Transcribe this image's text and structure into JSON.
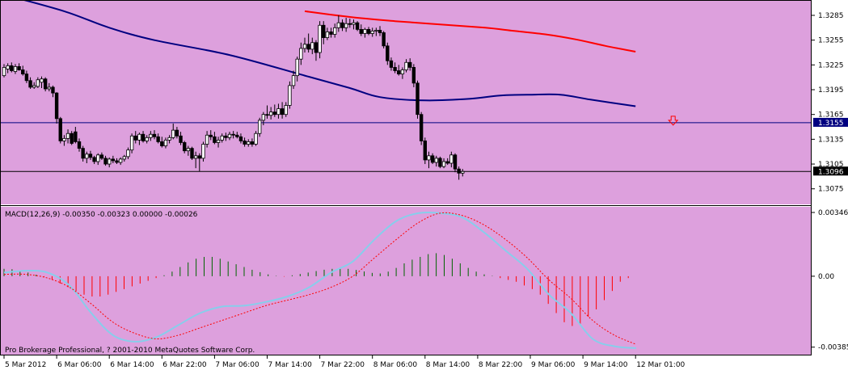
{
  "colors": {
    "background": "#DDA0DD",
    "bull_body": "#FFFFFF",
    "bear_body": "#000000",
    "candle_outline": "#000000",
    "ma_fast": "#000080",
    "ma_slow": "#FF0000",
    "hline": "#000080",
    "macd_signal": "#FF0000",
    "macd_main": "#87CEEB",
    "hist_pos": "#006400",
    "hist_neg": "#FF0000",
    "arrow": "#FF0000"
  },
  "price_axis": {
    "range": [
      1.3063,
      1.3285
    ],
    "ticks": [
      "1.3285",
      "1.3255",
      "1.3225",
      "1.3195",
      "1.3165",
      "1.3135",
      "1.3105",
      "1.3075"
    ],
    "hline_label": "1.3155",
    "hline_value": 1.3155,
    "last_label": "1.3096",
    "last_value": 1.3096
  },
  "macd_axis": {
    "label": "MACD(12,26,9) -0.00350 -0.00323 0.00000 -0.00026",
    "range": [
      -0.00395,
      0.00346
    ],
    "ticks": [
      "0.00346",
      "0.00",
      "-0.00385"
    ]
  },
  "copyright": "Pro Brokerage Professional, ? 2001-2010 MetaQuotes Software Corp.",
  "time_axis": {
    "labels": [
      "5 Mar 2012",
      "6 Mar 06:00",
      "6 Mar 14:00",
      "6 Mar 22:00",
      "7 Mar 06:00",
      "7 Mar 14:00",
      "7 Mar 22:00",
      "8 Mar 06:00",
      "8 Mar 14:00",
      "8 Mar 22:00",
      "9 Mar 06:00",
      "9 Mar 14:00",
      "12 Mar 01:00"
    ],
    "label_slots": [
      0,
      14,
      28,
      42,
      56,
      70,
      84,
      98,
      112,
      126,
      140,
      154,
      168
    ]
  },
  "arrow": {
    "slot": 178,
    "price": 1.3157
  },
  "chart_data": [
    {
      "type": "candlestick",
      "x_unit": "hourly bars",
      "ohlc": [
        [
          1.3212,
          1.3226,
          1.321,
          1.3222
        ],
        [
          1.322,
          1.3227,
          1.3215,
          1.3224
        ],
        [
          1.3224,
          1.3228,
          1.3216,
          1.3218
        ],
        [
          1.3217,
          1.3226,
          1.3214,
          1.3223
        ],
        [
          1.3223,
          1.3227,
          1.3218,
          1.3219
        ],
        [
          1.3219,
          1.3224,
          1.3212,
          1.3214
        ],
        [
          1.3214,
          1.3218,
          1.3203,
          1.3206
        ],
        [
          1.3206,
          1.321,
          1.3196,
          1.3198
        ],
        [
          1.3198,
          1.3204,
          1.3196,
          1.32
        ],
        [
          1.3199,
          1.321,
          1.3197,
          1.3207
        ],
        [
          1.3204,
          1.3211,
          1.3197,
          1.3208
        ],
        [
          1.3208,
          1.321,
          1.3193,
          1.3196
        ],
        [
          1.3196,
          1.3203,
          1.3193,
          1.3198
        ],
        [
          1.3198,
          1.32,
          1.3186,
          1.3191
        ],
        [
          1.3191,
          1.3192,
          1.3154,
          1.316
        ],
        [
          1.316,
          1.3162,
          1.313,
          1.3133
        ],
        [
          1.3133,
          1.314,
          1.3127,
          1.3136
        ],
        [
          1.3136,
          1.3147,
          1.313,
          1.3142
        ],
        [
          1.3142,
          1.3145,
          1.3128,
          1.313
        ],
        [
          1.3144,
          1.315,
          1.313,
          1.3132
        ],
        [
          1.3132,
          1.3136,
          1.312,
          1.3124
        ],
        [
          1.3124,
          1.3127,
          1.3108,
          1.3112
        ],
        [
          1.3112,
          1.312,
          1.3106,
          1.3117
        ],
        [
          1.3117,
          1.3121,
          1.311,
          1.3113
        ],
        [
          1.3113,
          1.3115,
          1.3105,
          1.3108
        ],
        [
          1.3108,
          1.3118,
          1.3104,
          1.3116
        ],
        [
          1.3116,
          1.3119,
          1.311,
          1.3112
        ],
        [
          1.3112,
          1.3115,
          1.3103,
          1.3105
        ],
        [
          1.3105,
          1.3113,
          1.3101,
          1.3111
        ],
        [
          1.3111,
          1.3115,
          1.3106,
          1.3109
        ],
        [
          1.3109,
          1.3112,
          1.3105,
          1.3107
        ],
        [
          1.3107,
          1.3113,
          1.3104,
          1.3111
        ],
        [
          1.3111,
          1.3116,
          1.3108,
          1.3114
        ],
        [
          1.3114,
          1.3125,
          1.3111,
          1.3122
        ],
        [
          1.3122,
          1.3142,
          1.3118,
          1.3139
        ],
        [
          1.3139,
          1.3145,
          1.313,
          1.3134
        ],
        [
          1.3134,
          1.3143,
          1.3128,
          1.3141
        ],
        [
          1.3141,
          1.3145,
          1.3131,
          1.3133
        ],
        [
          1.3133,
          1.314,
          1.313,
          1.3137
        ],
        [
          1.3137,
          1.3145,
          1.3133,
          1.3141
        ],
        [
          1.3141,
          1.3146,
          1.3135,
          1.3138
        ],
        [
          1.3138,
          1.3142,
          1.313,
          1.3132
        ],
        [
          1.3132,
          1.3138,
          1.3125,
          1.3127
        ],
        [
          1.3127,
          1.3137,
          1.3124,
          1.3134
        ],
        [
          1.3134,
          1.314,
          1.313,
          1.3137
        ],
        [
          1.3137,
          1.3154,
          1.3135,
          1.3146
        ],
        [
          1.3146,
          1.315,
          1.3136,
          1.3139
        ],
        [
          1.3139,
          1.3144,
          1.3128,
          1.3131
        ],
        [
          1.3131,
          1.3133,
          1.3118,
          1.3121
        ],
        [
          1.3121,
          1.3127,
          1.3115,
          1.3124
        ],
        [
          1.3124,
          1.3126,
          1.311,
          1.3112
        ],
        [
          1.3112,
          1.312,
          1.31,
          1.3115
        ],
        [
          1.3115,
          1.3118,
          1.3096,
          1.3112
        ],
        [
          1.3112,
          1.3132,
          1.3108,
          1.3129
        ],
        [
          1.3129,
          1.3145,
          1.3125,
          1.314
        ],
        [
          1.314,
          1.3146,
          1.3134,
          1.3138
        ],
        [
          1.3138,
          1.3144,
          1.3129,
          1.3131
        ],
        [
          1.3131,
          1.3138,
          1.3125,
          1.3134
        ],
        [
          1.3134,
          1.3142,
          1.3131,
          1.3139
        ],
        [
          1.3139,
          1.3143,
          1.3133,
          1.3137
        ],
        [
          1.3137,
          1.3144,
          1.3134,
          1.3141
        ],
        [
          1.3141,
          1.3145,
          1.3136,
          1.314
        ],
        [
          1.314,
          1.3144,
          1.3136,
          1.3138
        ],
        [
          1.3138,
          1.3142,
          1.313,
          1.3133
        ],
        [
          1.3133,
          1.3137,
          1.3126,
          1.3129
        ],
        [
          1.3129,
          1.3135,
          1.3126,
          1.3132
        ],
        [
          1.3132,
          1.3136,
          1.3126,
          1.3129
        ],
        [
          1.3129,
          1.3145,
          1.3127,
          1.3142
        ],
        [
          1.3142,
          1.3161,
          1.3138,
          1.3158
        ],
        [
          1.3158,
          1.3168,
          1.3152,
          1.3165
        ],
        [
          1.3165,
          1.3176,
          1.316,
          1.3164
        ],
        [
          1.3164,
          1.3174,
          1.3159,
          1.3168
        ],
        [
          1.3168,
          1.3177,
          1.3162,
          1.3165
        ],
        [
          1.3165,
          1.3178,
          1.316,
          1.3172
        ],
        [
          1.3172,
          1.318,
          1.316,
          1.3165
        ],
        [
          1.3165,
          1.318,
          1.3162,
          1.3176
        ],
        [
          1.3176,
          1.3205,
          1.3172,
          1.32
        ],
        [
          1.32,
          1.3218,
          1.3196,
          1.3212
        ],
        [
          1.3212,
          1.3235,
          1.3205,
          1.3232
        ],
        [
          1.3232,
          1.3252,
          1.3225,
          1.3245
        ],
        [
          1.3245,
          1.3258,
          1.324,
          1.325
        ],
        [
          1.325,
          1.3263,
          1.324,
          1.3244
        ],
        [
          1.3244,
          1.3258,
          1.3238,
          1.3252
        ],
        [
          1.3252,
          1.3255,
          1.323,
          1.324
        ],
        [
          1.324,
          1.3278,
          1.3233,
          1.3273
        ],
        [
          1.3273,
          1.3278,
          1.325,
          1.3258
        ],
        [
          1.3258,
          1.327,
          1.3255,
          1.3265
        ],
        [
          1.3265,
          1.327,
          1.3258,
          1.3262
        ],
        [
          1.3262,
          1.3275,
          1.3258,
          1.327
        ],
        [
          1.327,
          1.3285,
          1.3265,
          1.3276
        ],
        [
          1.3276,
          1.328,
          1.3266,
          1.327
        ],
        [
          1.327,
          1.3282,
          1.3265,
          1.3275
        ],
        [
          1.3275,
          1.3281,
          1.327,
          1.3274
        ],
        [
          1.3274,
          1.328,
          1.3268,
          1.3276
        ],
        [
          1.3276,
          1.3278,
          1.3266,
          1.3268
        ],
        [
          1.3268,
          1.3274,
          1.326,
          1.3263
        ],
        [
          1.3263,
          1.327,
          1.3258,
          1.3268
        ],
        [
          1.3268,
          1.3271,
          1.3261,
          1.3263
        ],
        [
          1.3263,
          1.327,
          1.3259,
          1.3266
        ],
        [
          1.3266,
          1.327,
          1.326,
          1.3267
        ],
        [
          1.3267,
          1.3272,
          1.326,
          1.3264
        ],
        [
          1.3264,
          1.3266,
          1.3245,
          1.3248
        ],
        [
          1.3248,
          1.3252,
          1.3225,
          1.323
        ],
        [
          1.323,
          1.3234,
          1.3218,
          1.3222
        ],
        [
          1.3222,
          1.3228,
          1.3215,
          1.3218
        ],
        [
          1.3218,
          1.3225,
          1.3212,
          1.3214
        ],
        [
          1.3214,
          1.3222,
          1.3208,
          1.3219
        ],
        [
          1.3219,
          1.3232,
          1.3216,
          1.3228
        ],
        [
          1.3228,
          1.3233,
          1.3218,
          1.3222
        ],
        [
          1.3222,
          1.3226,
          1.3198,
          1.3203
        ],
        [
          1.3203,
          1.3206,
          1.316,
          1.3165
        ],
        [
          1.3165,
          1.3168,
          1.3128,
          1.3133
        ],
        [
          1.3133,
          1.3137,
          1.3105,
          1.311
        ],
        [
          1.311,
          1.312,
          1.31,
          1.3115
        ],
        [
          1.3115,
          1.3118,
          1.3105,
          1.3107
        ],
        [
          1.3107,
          1.3115,
          1.3102,
          1.3112
        ],
        [
          1.3112,
          1.3114,
          1.31,
          1.3102
        ],
        [
          1.3102,
          1.3112,
          1.31,
          1.3108
        ],
        [
          1.3108,
          1.3112,
          1.3104,
          1.3106
        ],
        [
          1.3106,
          1.312,
          1.3101,
          1.3116
        ],
        [
          1.3116,
          1.3118,
          1.3095,
          1.3099
        ],
        [
          1.3099,
          1.3102,
          1.3086,
          1.3094
        ],
        [
          1.3094,
          1.3099,
          1.309,
          1.3096
        ]
      ]
    },
    {
      "type": "line",
      "name": "fast moving average",
      "x": [
        0,
        16,
        28,
        40,
        60,
        80,
        92,
        100,
        112,
        124,
        132,
        140,
        148,
        156,
        168
      ],
      "y": [
        1.331,
        1.329,
        1.327,
        1.3255,
        1.3237,
        1.3212,
        1.3197,
        1.3186,
        1.3182,
        1.3184,
        1.3188,
        1.3189,
        1.3189,
        1.3183,
        1.3175
      ]
    },
    {
      "type": "line",
      "name": "slow moving average",
      "x": [
        80,
        92,
        104,
        116,
        128,
        136,
        144,
        152,
        160,
        168
      ],
      "y": [
        1.329,
        1.3283,
        1.3278,
        1.3274,
        1.327,
        1.3266,
        1.3262,
        1.3256,
        1.3248,
        1.3241
      ]
    },
    {
      "type": "macd",
      "histogram": [
        0.0004,
        0.00038,
        0.0003,
        0.0002,
        8e-05,
        -5e-05,
        -0.0002,
        -0.0004,
        -0.0006,
        -0.0008,
        -0.001,
        -0.0011,
        -0.0011,
        -0.001,
        -0.00085,
        -0.0007,
        -0.00055,
        -0.0004,
        -0.00025,
        -0.0001,
        5e-05,
        0.00025,
        0.0005,
        0.00075,
        0.00095,
        0.00105,
        0.00105,
        0.00095,
        0.0008,
        0.00065,
        0.0005,
        0.00035,
        0.00022,
        0.0001,
        2e-05,
        -2e-05,
        5e-05,
        0.00012,
        0.0002,
        0.00028,
        0.00035,
        0.0004,
        0.00042,
        0.0004,
        0.00034,
        0.00026,
        0.00018,
        0.00015,
        0.00025,
        0.00045,
        0.0007,
        0.0009,
        0.00105,
        0.0012,
        0.00125,
        0.00115,
        0.00095,
        0.0007,
        0.00045,
        0.00025,
        0.0001,
        2e-05,
        -0.0001,
        -0.0002,
        -0.0003,
        -0.0005,
        -0.0007,
        -0.001,
        -0.0015,
        -0.002,
        -0.0025,
        -0.0027,
        -0.0026,
        -0.0022,
        -0.0018,
        -0.0013,
        -0.0008,
        -0.0003,
        -0.0001
      ],
      "main": [
        0.0002,
        0.0003,
        0.0002,
        -0.0005,
        -0.002,
        -0.0032,
        -0.00355,
        -0.0033,
        -0.00265,
        -0.002,
        -0.00165,
        -0.0016,
        -0.0014,
        -0.0011,
        -0.0006,
        0.0002,
        0.0008,
        0.002,
        0.003,
        0.00342,
        0.00342,
        0.0032,
        0.0024,
        0.0014,
        0.0004,
        -0.001,
        -0.002,
        -0.0034,
        -0.0038,
        -0.0039
      ],
      "signal": [
        0.0001,
        0.0001,
        -0.0001,
        -0.0006,
        -0.0015,
        -0.0025,
        -0.0031,
        -0.0034,
        -0.0032,
        -0.0028,
        -0.0024,
        -0.002,
        -0.0016,
        -0.0013,
        -0.001,
        -0.0006,
        0.0,
        0.001,
        0.002,
        0.0029,
        0.00342,
        0.0033,
        0.0028,
        0.002,
        0.001,
        -0.0002,
        -0.0012,
        -0.0024,
        -0.0032,
        -0.0037
      ]
    }
  ]
}
